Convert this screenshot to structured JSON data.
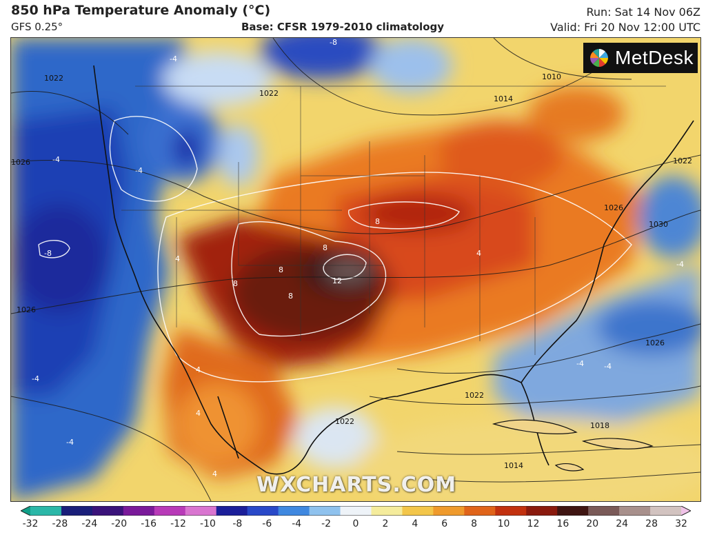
{
  "header": {
    "title": "850 hPa Temperature Anomaly (°C)",
    "model": "GFS 0.25°",
    "base": "Base: CFSR 1979-2010 climatology",
    "run": "Run: Sat 14 Nov 06Z",
    "valid": "Valid: Fri 20 Nov 12:00 UTC"
  },
  "logo": {
    "text": "MetDesk",
    "icon": "metdesk-pinwheel-icon"
  },
  "watermark": "WXCHARTS.COM",
  "map": {
    "isobar_labels": [
      "1010",
      "1014",
      "1022",
      "1022",
      "1022",
      "1026",
      "1026",
      "1026",
      "1026",
      "1030",
      "1022",
      "1014",
      "1018",
      "1022"
    ],
    "anomaly_labels": [
      "-8",
      "-8",
      "-4",
      "-4",
      "-4",
      "-4",
      "-4",
      "-4",
      "4",
      "4",
      "4",
      "4",
      "8",
      "8",
      "8",
      "8",
      "8",
      "12",
      "4",
      "-4",
      "-4"
    ]
  },
  "colorbar": {
    "ticks": [
      "-32",
      "-28",
      "-24",
      "-20",
      "-16",
      "-12",
      "-10",
      "-8",
      "-6",
      "-4",
      "-2",
      "0",
      "2",
      "4",
      "6",
      "8",
      "10",
      "12",
      "16",
      "20",
      "24",
      "28",
      "32"
    ],
    "colors": [
      "#0f9f88",
      "#2bb7a8",
      "#1a1f7a",
      "#3a137a",
      "#7a1a9a",
      "#b83ab8",
      "#d975d0",
      "#1c1f9a",
      "#2949c8",
      "#3f88e0",
      "#8fc2ee",
      "#eef3f8",
      "#f5ec9c",
      "#f3c64a",
      "#ef9a2c",
      "#e0641a",
      "#c2310f",
      "#8a1a0e",
      "#3f1512",
      "#7a5a58",
      "#a8908c",
      "#d2c3c0",
      "#f0c2e8"
    ]
  }
}
